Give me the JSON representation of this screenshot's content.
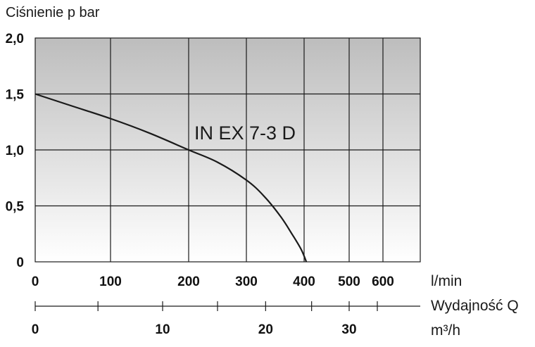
{
  "chart_data": {
    "type": "line",
    "ylabel": "Ciśnienie p bar",
    "y_ticks": [
      "2,0",
      "1,5",
      "1,0",
      "0,5",
      "0"
    ],
    "ylim": [
      0,
      2.0
    ],
    "x_top": {
      "ticks": [
        "0",
        "100",
        "200",
        "300",
        "400",
        "500",
        "600"
      ],
      "unit": "l/min"
    },
    "x_bottom": {
      "ticks": [
        "0",
        "10",
        "20",
        "30"
      ],
      "label": "Wydajność Q",
      "unit": "m³/h"
    },
    "series": [
      {
        "name": "IN EX 7-3 D",
        "x": [
          0,
          50,
          100,
          150,
          200,
          250,
          300,
          330,
          360,
          380,
          395,
          405
        ],
        "y": [
          1.5,
          1.39,
          1.28,
          1.15,
          1.0,
          0.89,
          0.73,
          0.59,
          0.4,
          0.24,
          0.11,
          0.0
        ]
      }
    ],
    "grid": true,
    "colors": {
      "line": "#1a1a1a",
      "grid": "#1a1a1a",
      "bg_top": "#bdbdbd",
      "bg_bottom": "#ffffff"
    }
  }
}
